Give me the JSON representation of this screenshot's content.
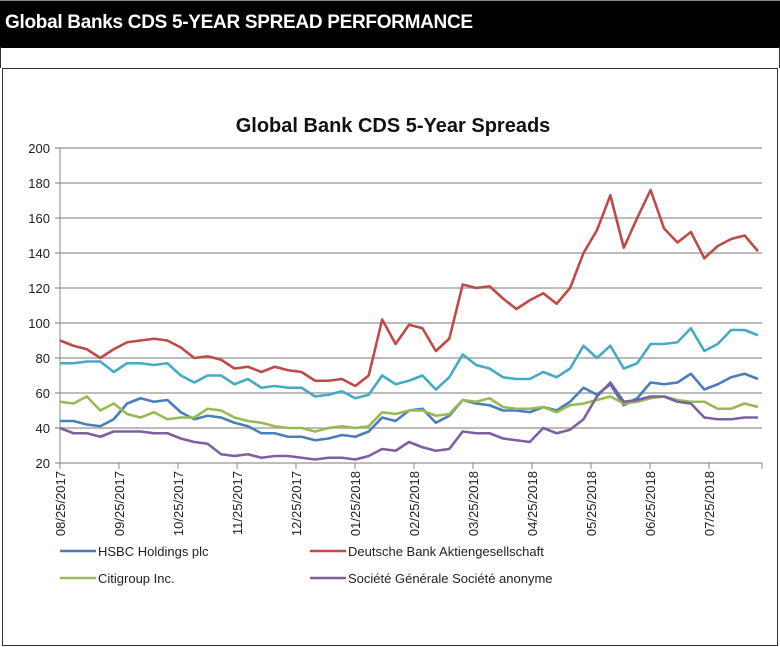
{
  "header": {
    "title": "Global Banks CDS 5-YEAR SPREAD PERFORMANCE"
  },
  "chart_data": {
    "type": "line",
    "title": "Global Bank CDS 5-Year Spreads",
    "xlabel": "",
    "ylabel": "",
    "ylim": [
      20,
      200
    ],
    "yticks": [
      20,
      40,
      60,
      80,
      100,
      120,
      140,
      160,
      180,
      200
    ],
    "x_tick_labels": [
      "08/25/2017",
      "09/25/2017",
      "10/25/2017",
      "11/25/2017",
      "12/25/2017",
      "01/25/2018",
      "02/25/2018",
      "03/25/2018",
      "04/25/2018",
      "05/25/2018",
      "06/25/2018",
      "07/25/2018"
    ],
    "grid": "horizontal",
    "legend": "bottom",
    "series": [
      {
        "name": "HSBC Holdings plc",
        "color": "#4a7ebb",
        "values": [
          44,
          44,
          42,
          41,
          45,
          54,
          57,
          55,
          56,
          49,
          45,
          47,
          46,
          43,
          41,
          37,
          37,
          35,
          35,
          33,
          34,
          36,
          35,
          38,
          46,
          44,
          50,
          51,
          43,
          47,
          56,
          54,
          53,
          50,
          50,
          49,
          52,
          50,
          55,
          63,
          59,
          65,
          53,
          57,
          66,
          65,
          66,
          71,
          62,
          65,
          69,
          71,
          68
        ]
      },
      {
        "name": "Deutsche Bank Aktiengesellschaft",
        "color": "#be4b48",
        "values": [
          90,
          87,
          85,
          80,
          85,
          89,
          90,
          91,
          90,
          86,
          80,
          81,
          79,
          74,
          75,
          72,
          75,
          73,
          72,
          67,
          67,
          68,
          64,
          70,
          102,
          88,
          99,
          97,
          84,
          91,
          122,
          120,
          121,
          114,
          108,
          113,
          117,
          111,
          120,
          140,
          153,
          173,
          143,
          160,
          176,
          154,
          146,
          152,
          137,
          144,
          148,
          150,
          141
        ]
      },
      {
        "name": "Citigroup Inc.",
        "color": "#98b954",
        "values": [
          55,
          54,
          58,
          50,
          54,
          48,
          46,
          49,
          45,
          46,
          46,
          51,
          50,
          46,
          44,
          43,
          41,
          40,
          40,
          38,
          40,
          41,
          40,
          41,
          49,
          48,
          50,
          50,
          47,
          48,
          56,
          55,
          57,
          52,
          51,
          51,
          52,
          49,
          53,
          54,
          56,
          58,
          54,
          55,
          57,
          58,
          56,
          55,
          55,
          51,
          51,
          54,
          52
        ]
      },
      {
        "name": "Société Générale Société anonyme",
        "color": "#7d60a0",
        "values": [
          40,
          37,
          37,
          35,
          38,
          38,
          38,
          37,
          37,
          34,
          32,
          31,
          25,
          24,
          25,
          23,
          24,
          24,
          23,
          22,
          23,
          23,
          22,
          24,
          28,
          27,
          32,
          29,
          27,
          28,
          38,
          37,
          37,
          34,
          33,
          32,
          40,
          37,
          39,
          45,
          58,
          66,
          55,
          56,
          58,
          58,
          55,
          54,
          46,
          45,
          45,
          46,
          46
        ]
      },
      {
        "color": "#46aac5",
        "values": [
          77,
          77,
          78,
          78,
          72,
          77,
          77,
          76,
          77,
          70,
          66,
          70,
          70,
          65,
          68,
          63,
          64,
          63,
          63,
          58,
          59,
          61,
          57,
          59,
          70,
          65,
          67,
          70,
          62,
          69,
          82,
          76,
          74,
          69,
          68,
          68,
          72,
          69,
          74,
          87,
          80,
          87,
          74,
          77,
          88,
          88,
          89,
          97,
          84,
          88,
          96,
          96,
          93
        ]
      }
    ]
  }
}
